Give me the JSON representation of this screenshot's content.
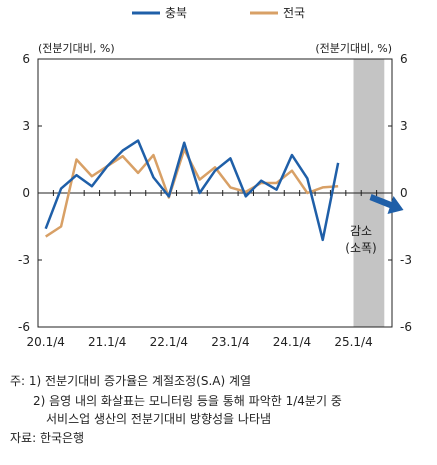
{
  "chart_data": {
    "type": "line",
    "legend": {
      "position": "top-center"
    },
    "series": [
      {
        "name": "충북",
        "color": "#1f5fa8",
        "values": [
          -1.6,
          0.2,
          0.8,
          0.3,
          1.2,
          1.9,
          2.35,
          0.7,
          -0.15,
          2.25,
          0.0,
          1.0,
          1.55,
          -0.15,
          0.55,
          0.15,
          1.7,
          0.65,
          -2.1,
          1.35
        ]
      },
      {
        "name": "전국",
        "color": "#d8a066",
        "values": [
          -1.95,
          -1.5,
          1.5,
          0.75,
          1.2,
          1.65,
          0.9,
          1.7,
          -0.2,
          1.95,
          0.6,
          1.15,
          0.25,
          0.05,
          0.45,
          0.45,
          1.0,
          0.0,
          0.25,
          0.3
        ]
      }
    ],
    "x_tick_labels": [
      "20.1/4",
      "21.1/4",
      "22.1/4",
      "23.1/4",
      "24.1/4",
      "25.1/4"
    ],
    "ylim": [
      -6,
      6
    ],
    "y_ticks": [
      "6",
      "3",
      "0",
      "-3",
      "-6"
    ],
    "left_unit_label": "(전분기대비, %)",
    "right_unit_label": "(전분기대비, %)",
    "shaded_region": {
      "from_index": 20.5,
      "to_index": 22.5
    },
    "annotation": {
      "line1": "감소",
      "line2": "(소폭)",
      "arrow_color": "#1f5fa8"
    },
    "grid": false
  },
  "notes": {
    "line1": "주: 1) 전분기대비 증가율은 계절조정(S.A) 계열",
    "line2": "2) 음영 내의 화살표는 모니터링 등을 통해 파악한 1/4분기 중",
    "line3": "서비스업 생산의 전분기대비 방향성을 나타냄",
    "source": "자료: 한국은행"
  }
}
